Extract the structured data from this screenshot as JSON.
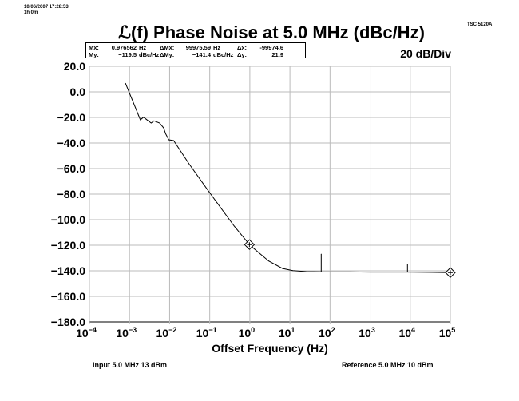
{
  "header": {
    "timestamp": "10/06/2007 17:28:53",
    "elapsed": "1h 0m",
    "instrument": "TSC 5120A",
    "scale": "20 dB/Div"
  },
  "marker_readout": {
    "row1": [
      "Mx:",
      "0.976562",
      "Hz",
      "ΔMx:",
      "99975.59",
      "Hz",
      "Δx:",
      "-99974.6"
    ],
    "row2": [
      "My:",
      "−119.5",
      "dBc/Hz",
      "ΔMy:",
      "−141.4",
      "dBc/Hz",
      "Δy:",
      "21.9"
    ]
  },
  "footer": {
    "input": "Input 5.0 MHz 13 dBm",
    "reference": "Reference 5.0 MHz 10 dBm"
  },
  "chart_data": {
    "type": "line",
    "title": "ℒ(f) Phase Noise at 5.0 MHz (dBc/Hz)",
    "xlabel": "Offset Frequency (Hz)",
    "ylabel": "",
    "xscale": "log",
    "xlim": [
      0.0001,
      100000
    ],
    "ylim": [
      -180,
      20
    ],
    "grid": true,
    "yticks": [
      "20.0",
      "0.0",
      "−20.0",
      "−40.0",
      "−60.0",
      "−80.0",
      "−100.0",
      "−120.0",
      "−140.0",
      "−160.0",
      "−180.0"
    ],
    "xticks": [
      {
        "base": "10",
        "exp": "−4"
      },
      {
        "base": "10",
        "exp": "−3"
      },
      {
        "base": "10",
        "exp": "−2"
      },
      {
        "base": "10",
        "exp": "−1"
      },
      {
        "base": "10",
        "exp": "0"
      },
      {
        "base": "10",
        "exp": "1"
      },
      {
        "base": "10",
        "exp": "2"
      },
      {
        "base": "10",
        "exp": "3"
      },
      {
        "base": "10",
        "exp": "4"
      },
      {
        "base": "10",
        "exp": "5"
      }
    ],
    "series": [
      {
        "name": "Phase noise",
        "log10_x": [
          -3.1,
          -2.73,
          -2.65,
          -2.46,
          -2.39,
          -2.25,
          -2.15,
          -2.1,
          -2.02,
          -1.9,
          -1.52,
          -1.02,
          -0.39,
          0.01,
          0.47,
          0.81,
          1.07,
          1.4,
          1.78,
          1.78,
          1.78,
          2.5,
          3.0,
          3.5,
          3.93,
          3.93,
          3.93,
          4.5,
          5.0
        ],
        "y": [
          6.7,
          -21.9,
          -19.8,
          -24.4,
          -22.7,
          -24.4,
          -28.1,
          -32.7,
          -37.5,
          -38.1,
          -56.2,
          -78.1,
          -105,
          -120.2,
          -132.3,
          -138.1,
          -139.8,
          -140.6,
          -140.8,
          -126.9,
          -140.8,
          -140.9,
          -141.0,
          -141.0,
          -141.0,
          -134.8,
          -141.0,
          -141.2,
          -141.4
        ]
      }
    ],
    "markers": [
      {
        "name": "marker-1",
        "x": 0.976562,
        "y": -119.5
      },
      {
        "name": "marker-2",
        "x": 100000,
        "y": -141.4
      }
    ]
  }
}
